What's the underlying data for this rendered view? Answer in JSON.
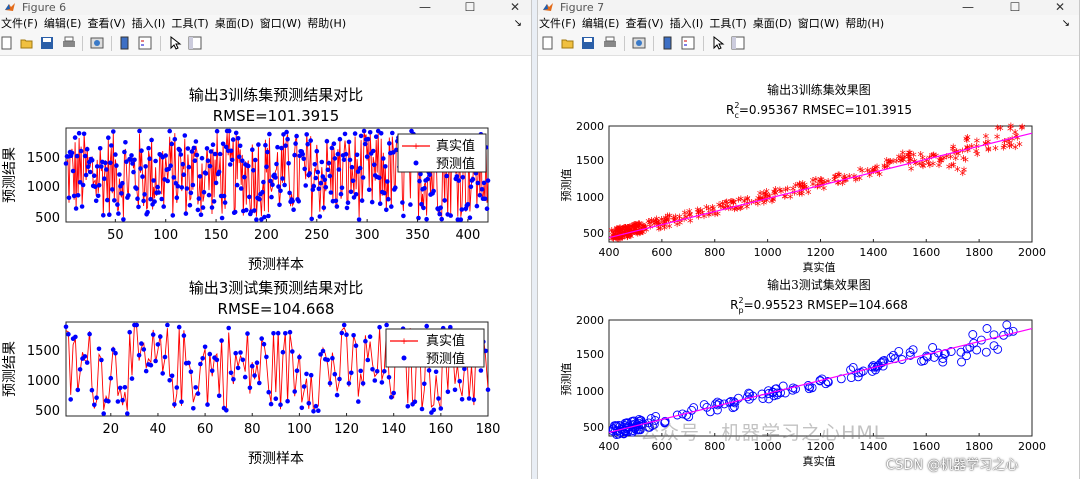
{
  "windows": [
    {
      "title": "Figure 6"
    },
    {
      "title": "Figure 7"
    }
  ],
  "menu": [
    "文件(F)",
    "编辑(E)",
    "查看(V)",
    "插入(I)",
    "工具(T)",
    "桌面(D)",
    "窗口(W)",
    "帮助(H)"
  ],
  "colors": {
    "true_line": "#ff0000",
    "pred_point": "#0000ff",
    "fit_line": "#ff00ff",
    "scatter_train": "#ff0000",
    "scatter_test": "#0000ff"
  },
  "figure6": {
    "top": {
      "title": "输出3训练集预测结果对比",
      "subtitle": "RMSE=101.3915",
      "ylabel": "预测结果",
      "xlabel": "预测样本",
      "xticks": [
        "50",
        "100",
        "150",
        "200",
        "250",
        "300",
        "350",
        "400"
      ],
      "yticks": [
        "500",
        "1000",
        "1500"
      ],
      "legend": [
        "真实值",
        "预测值"
      ]
    },
    "bottom": {
      "title": "输出3测试集预测结果对比",
      "subtitle": "RMSE=104.668",
      "ylabel": "预测结果",
      "xlabel": "预测样本",
      "xticks": [
        "20",
        "40",
        "60",
        "80",
        "100",
        "120",
        "140",
        "160",
        "180"
      ],
      "yticks": [
        "500",
        "1000",
        "1500"
      ],
      "legend": [
        "真实值",
        "预测值"
      ]
    }
  },
  "figure7": {
    "top": {
      "title": "输出3训练集效果图",
      "subtitle_r2": "R",
      "subtitle_sub": "c",
      "subtitle_sup": "2",
      "subtitle_rest": "=0.95367  RMSEC=101.3915",
      "ylabel": "预测值",
      "xlabel": "真实值",
      "xticks": [
        "400",
        "600",
        "800",
        "1000",
        "1200",
        "1400",
        "1600",
        "1800",
        "2000"
      ],
      "yticks": [
        "500",
        "1000",
        "1500",
        "2000"
      ]
    },
    "bottom": {
      "title": "输出3测试集效果图",
      "subtitle_r2": "R",
      "subtitle_sub": "p",
      "subtitle_sup": "2",
      "subtitle_rest": "=0.95523  RMSEP=104.668",
      "ylabel": "预测值",
      "xlabel": "真实值",
      "xticks": [
        "400",
        "600",
        "800",
        "1000",
        "1200",
        "1400",
        "1600",
        "1800",
        "2000"
      ],
      "yticks": [
        "500",
        "1000",
        "1500",
        "2000"
      ]
    }
  },
  "watermark": "公众号 · 机器学习之心HML",
  "csdn": "CSDN @机器学习之心",
  "chart_data": [
    {
      "type": "line",
      "title": "输出3训练集预测结果对比",
      "subtitle": "RMSE=101.3915",
      "xlabel": "预测样本",
      "ylabel": "预测结果",
      "xlim": [
        1,
        420
      ],
      "ylim": [
        380,
        1950
      ],
      "series": [
        {
          "name": "真实值",
          "style": "red line with + markers"
        },
        {
          "name": "预测值",
          "style": "blue dots"
        }
      ],
      "n_samples": 420
    },
    {
      "type": "line",
      "title": "输出3测试集预测结果对比",
      "subtitle": "RMSE=104.668",
      "xlabel": "预测样本",
      "ylabel": "预测结果",
      "xlim": [
        1,
        180
      ],
      "ylim": [
        380,
        1950
      ],
      "series": [
        {
          "name": "真实值",
          "style": "red line with + markers"
        },
        {
          "name": "预测值",
          "style": "blue dots"
        }
      ],
      "n_samples": 180
    },
    {
      "type": "scatter",
      "title": "输出3训练集效果图",
      "subtitle": "R_c^2=0.95367  RMSEC=101.3915",
      "xlabel": "真实值",
      "ylabel": "预测值",
      "xlim": [
        400,
        2000
      ],
      "ylim": [
        380,
        2000
      ],
      "fit_line": [
        [
          400,
          440
        ],
        [
          2000,
          1900
        ]
      ],
      "marker": "red *"
    },
    {
      "type": "scatter",
      "title": "输出3测试集效果图",
      "subtitle": "R_p^2=0.95523  RMSEP=104.668",
      "xlabel": "真实值",
      "ylabel": "预测值",
      "xlim": [
        400,
        2000
      ],
      "ylim": [
        380,
        2000
      ],
      "fit_line": [
        [
          400,
          430
        ],
        [
          2000,
          1880
        ]
      ],
      "marker": "blue o"
    }
  ]
}
